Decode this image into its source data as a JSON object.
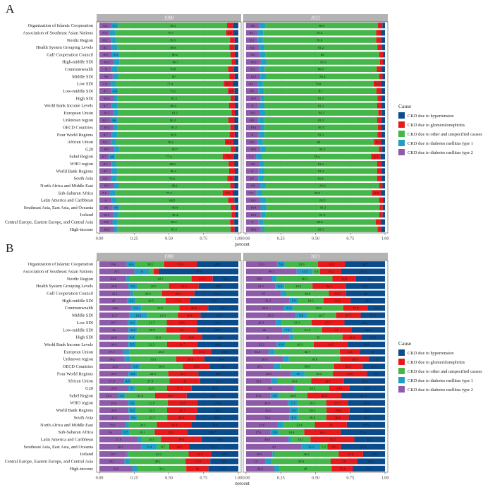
{
  "panels": [
    {
      "label": "A",
      "facets": [
        "1990",
        "2021"
      ]
    },
    {
      "label": "B",
      "facets": [
        "1990",
        "2021"
      ]
    }
  ],
  "legend": {
    "title": "Cause",
    "items": [
      {
        "name": "CKD due to hypertension",
        "color": "#0b4c8c"
      },
      {
        "name": "CKD due to glomerulonephritis",
        "color": "#e41a1c"
      },
      {
        "name": "CKD due to other and unspecified causes",
        "color": "#45b649"
      },
      {
        "name": "CKD due to diabetes mellitus type 1",
        "color": "#1f9fc4"
      },
      {
        "name": "CKD due to diabetes mellitus type 2",
        "color": "#8e5ba8"
      }
    ]
  },
  "chart_data": [
    {
      "type": "bar",
      "orientation": "horizontal",
      "stacked": true,
      "panel": "A",
      "xlabel": "percent",
      "xlim": [
        0,
        1
      ],
      "xticks": [
        "0.00",
        "0.25",
        "0.50",
        "0.75",
        "1.00"
      ],
      "categories": [
        "Organization of Islamic Cooperation",
        "Association of Southeast Asian Nations",
        "Nordic Region",
        "Health System Grouping Levels",
        "Gulf Cooperation Council",
        "High-middle SDI",
        "Commonwealth",
        "Middle SDI",
        "Low SDI",
        "Low-middle SDI",
        "High SDI",
        "World Bank Income Levels",
        "European Union",
        "Unknown region",
        "OECD Countries",
        "Four World Regions",
        "African Union",
        "G20",
        "Sahel Region",
        "WHO region",
        "World Bank Regions",
        "South Asia",
        "North Africa and Middle East",
        "Sub-Saharan Africa",
        "Latin America and Caribbean",
        "Southeast Asia, East Asia, and Oceania",
        "Iceland",
        "Central Europe, Eastern Europe, and Central Asia",
        "High-income"
      ],
      "facets": [
        {
          "name": "1990",
          "series": [
            {
              "name": "CKD due to diabetes mellitus type 2",
              "values": [
                8.4,
                7.3,
                8.2,
                8.7,
                8.9,
                10.2,
                9.0,
                9.6,
                7.9,
                8.7,
                10.4,
                8.7,
                10.1,
                8.1,
                10.3,
                8.7,
                8.2,
                9.9,
                6.7,
                8.7,
                8.7,
                8.4,
                9.9,
                7.1,
                9.0,
                9.6,
                10.1,
                9.4,
                10.4
              ]
            },
            {
              "name": "CKD due to diabetes mellitus type 1",
              "values": [
                5.1,
                4.2,
                3.9,
                4.2,
                5.3,
                4.2,
                3.9,
                3.9,
                4.2,
                4.6,
                2.6,
                4.3,
                3.5,
                4.6,
                2.8,
                4.4,
                3.7,
                4.1,
                4.6,
                3.5,
                4.3,
                4.1,
                4.1,
                4.4,
                3.2,
                4.6,
                3.7,
                3.7,
                2.6
              ]
            },
            {
              "name": "CKD due to other and unspecified causes",
              "values": [
                78.4,
                79.7,
                81.9,
                80.6,
                80.2,
                80.7,
                79.8,
                80.0,
                77.4,
                79.2,
                81.5,
                80.4,
                81.5,
                80.2,
                81.2,
                80.6,
                78.4,
                80.7,
                77.4,
                80.8,
                80.4,
                79.6,
                80.2,
                77.2,
                80.5,
                80.4,
                81.4,
                80.9,
                81.5
              ]
            },
            {
              "name": "CKD due to glomerulonephritis",
              "values": [
                4.5,
                5.2,
                3.4,
                3.8,
                3.3,
                2.9,
                4.1,
                3.9,
                6.7,
                4.8,
                2.8,
                4.1,
                2.6,
                4.3,
                2.9,
                3.7,
                6.1,
                3.1,
                7.9,
                4.2,
                4.1,
                5.0,
                3.0,
                7.5,
                4.4,
                3.6,
                2.8,
                3.0,
                2.8
              ]
            },
            {
              "name": "CKD due to hypertension",
              "values": [
                3.6,
                3.6,
                2.6,
                2.7,
                2.3,
                2.0,
                3.2,
                2.6,
                3.8,
                2.7,
                2.7,
                2.5,
                2.3,
                2.8,
                2.8,
                2.6,
                3.6,
                2.2,
                3.4,
                2.8,
                2.5,
                2.9,
                2.8,
                3.8,
                2.9,
                1.8,
                2.0,
                3.0,
                2.7
              ]
            }
          ]
        },
        {
          "name": "2021",
          "series": [
            {
              "name": "CKD due to diabetes mellitus type 2",
              "values": [
                9.6,
                8.1,
                8.2,
                9.1,
                9.5,
                10.6,
                9.3,
                10.2,
                8.1,
                8.8,
                10.5,
                9.0,
                10.1,
                8.8,
                10.4,
                9.0,
                8.5,
                10.2,
                7.3,
                9.6,
                9.0,
                8.7,
                9.9,
                7.5,
                10.1,
                10.4,
                10.5,
                9.0,
                10.6
              ]
            },
            {
              "name": "CKD due to diabetes mellitus type 1",
              "values": [
                4.4,
                4.2,
                3.9,
                4.2,
                4.4,
                4.2,
                4.0,
                4.2,
                3.9,
                4.0,
                2.6,
                4.2,
                3.6,
                4.3,
                2.9,
                4.3,
                3.6,
                4.2,
                4.4,
                3.5,
                4.2,
                4.2,
                4.4,
                4.2,
                4.2,
                4.4,
                3.5,
                3.6,
                2.6
              ]
            },
            {
              "name": "CKD due to other and unspecified causes",
              "values": [
                80.9,
                81.4,
                81.6,
                81.2,
                82.0,
                81.5,
                80.8,
                81.4,
                79.8,
                81.0,
                81.5,
                81.2,
                81.5,
                81.3,
                81.5,
                81.2,
                80.0,
                81.2,
                78.4,
                81.2,
                81.2,
                81.4,
                81.6,
                78.9,
                81.5,
                81.3,
                81.9,
                80.8,
                81.5
              ]
            },
            {
              "name": "CKD due to glomerulonephritis",
              "values": [
                3.2,
                3.5,
                3.6,
                3.3,
                2.6,
                2.2,
                3.6,
                2.4,
                5.4,
                3.6,
                2.8,
                3.3,
                2.7,
                3.3,
                2.6,
                3.2,
                5.1,
                2.4,
                6.7,
                3.2,
                3.3,
                3.3,
                2.3,
                6.4,
                2.7,
                2.3,
                2.4,
                3.6,
                2.6
              ]
            },
            {
              "name": "CKD due to hypertension",
              "values": [
                1.9,
                2.8,
                2.7,
                2.2,
                1.5,
                1.5,
                2.3,
                1.8,
                2.8,
                2.6,
                2.6,
                2.3,
                2.1,
                2.3,
                2.6,
                2.3,
                2.8,
                2.0,
                3.2,
                2.5,
                2.3,
                2.4,
                1.8,
                3.0,
                1.5,
                1.6,
                1.7,
                3.0,
                2.7
              ]
            }
          ]
        }
      ]
    },
    {
      "type": "bar",
      "orientation": "horizontal",
      "stacked": true,
      "panel": "B",
      "xlabel": "percent",
      "xlim": [
        0,
        1
      ],
      "xticks": [
        "0.00",
        "0.25",
        "0.50",
        "0.75",
        "1.00"
      ],
      "categories": [
        "Organization of Islamic Cooperation",
        "Association of Southeast Asian Nations",
        "Nordic Region",
        "Health System Grouping Levels",
        "Gulf Cooperation Council",
        "High-middle SDI",
        "Commonwealth",
        "Middle SDI",
        "Low SDI",
        "Low-middle SDI",
        "High SDI",
        "World Bank Income Levels",
        "European Union",
        "Unknown region",
        "OECD Countries",
        "Four World Regions",
        "African Union",
        "G20",
        "Sahel Region",
        "WHO region",
        "World Bank Regions",
        "South Asia",
        "North Africa and Middle East",
        "Sub-Saharan Africa",
        "Latin America and Caribbean",
        "Southeast Asia, East Asia, and Oceania",
        "Iceland",
        "Central Europe, Eastern Europe, and Central Asia",
        "High-income"
      ],
      "facets": [
        {
          "name": "1990",
          "series": [
            {
              "name": "CKD due to diabetes mellitus type 2",
              "values": [
                19.6,
                25.1,
                19.4,
                20.8,
                22.1,
                20.0,
                22.6,
                21.7,
                20.7,
                21.0,
                20.8,
                20.9,
                17.7,
                18.2,
                22.6,
                20.9,
                17.8,
                20.8,
                13.2,
                20.6,
                20.9,
                21.5,
                19.1,
                16.0,
                27.4,
                30.1,
                19.7,
                18.1,
                23.6
              ]
            },
            {
              "name": "CKD due to diabetes mellitus type 1",
              "values": [
                6.6,
                11.0,
                2.2,
                6.8,
                2.6,
                6.2,
                7.4,
                12.9,
                6.1,
                6.3,
                5.4,
                5.5,
                4.0,
                4.0,
                6.9,
                6.4,
                4.8,
                5.0,
                5.5,
                5.6,
                5.5,
                5.6,
                2.0,
                5.7,
                2.8,
                11.4,
                1.3,
                3.7,
                3.8
              ]
            },
            {
              "name": "CKD due to other and unspecified causes",
              "values": [
                20.5,
                2.9,
                44.7,
                22.5,
                20.3,
                21.5,
                27.5,
                21.9,
                21.7,
                20.9,
                31.9,
                22.3,
                45.4,
                33.1,
                30.6,
                22.3,
                27.9,
                22.9,
                21.4,
                22.9,
                22.3,
                21.7,
                20.2,
                18.1,
                14.1,
                8.7,
                43.2,
                40.2,
                35.1
              ]
            },
            {
              "name": "CKD due to glomerulonephritis",
              "values": [
                23.4,
                3.7,
                15.3,
                21.3,
                23.4,
                17.4,
                20.8,
                16.3,
                21.6,
                22.0,
                15.8,
                21.7,
                13.3,
                20.3,
                19.3,
                21.7,
                22.0,
                17.7,
                22.7,
                21.5,
                21.7,
                20.3,
                24.9,
                23.5,
                29.4,
                14.5,
                16.3,
                17.8,
                16.0
              ]
            },
            {
              "name": "CKD due to hypertension",
              "values": [
                29.9,
                57.3,
                18.4,
                28.6,
                31.6,
                34.9,
                21.7,
                27.2,
                29.9,
                29.8,
                26.1,
                29.6,
                19.6,
                24.4,
                20.6,
                28.7,
                27.5,
                33.6,
                37.2,
                29.4,
                29.6,
                30.9,
                33.8,
                36.7,
                26.3,
                35.3,
                19.5,
                20.2,
                21.5
              ]
            }
          ]
        },
        {
          "name": "2021",
          "series": [
            {
              "name": "CKD due to diabetes mellitus type 2",
              "values": [
                22.3,
                36.4,
                18.8,
                21.2,
                25.0,
                31.4,
                26.9,
                35.3,
                21.4,
                26.0,
                31.0,
                22.2,
                16.4,
                26.4,
                20.1,
                32.3,
                18.1,
                34.0,
                17.6,
                30.3,
                31.2,
                31.1,
                22.6,
                17.6,
                30.4,
                40.0,
                18.9,
                14.0,
                20.3
              ]
            },
            {
              "name": "CKD due to diabetes mellitus type 1",
              "values": [
                5.6,
                11.5,
                3.1,
                6.4,
                3.9,
                5.9,
                7.3,
                8.8,
                4.4,
                7.3,
                3.4,
                6.4,
                4.3,
                4.5,
                4.4,
                10.0,
                4.5,
                1.6,
                5.9,
                7.1,
                6.5,
                6.3,
                4.5,
                5.9,
                1.9,
                13.3,
                1.4,
                4.3,
                3.3
              ]
            },
            {
              "name": "CKD due to other and unspecified causes",
              "values": [
                23.9,
                5.4,
                40.3,
                20.2,
                30.6,
                18.5,
                35.8,
                20.7,
                21.3,
                21.4,
                35.0,
                20.1,
                46.7,
                36.9,
                38.9,
                20.2,
                24.3,
                24.3,
                20.6,
                20.3,
                20.2,
                20.4,
                22.4,
                18.4,
                14.1,
                5.2,
                46.3,
                42.6,
                38.0
              ]
            },
            {
              "name": "CKD due to glomerulonephritis",
              "values": [
                19.5,
                15.2,
                16.8,
                24.1,
                12.5,
                19.4,
                17.8,
                17.7,
                23.7,
                21.0,
                13.4,
                24.5,
                14.6,
                20.5,
                20.5,
                24.5,
                23.6,
                14.5,
                24.4,
                15.7,
                16.6,
                16.1,
                23.0,
                26.3,
                31.5,
                9.9,
                17.6,
                19.0,
                15.3
              ]
            },
            {
              "name": "CKD due to hypertension",
              "values": [
                28.7,
                31.5,
                21.0,
                28.1,
                28.0,
                24.8,
                12.2,
                17.5,
                29.2,
                24.3,
                17.2,
                26.8,
                18.0,
                11.7,
                16.1,
                13.0,
                29.5,
                25.6,
                31.5,
                26.6,
                25.5,
                26.1,
                27.5,
                31.8,
                22.1,
                31.6,
                15.8,
                20.1,
                23.1
              ]
            }
          ]
        }
      ]
    }
  ]
}
